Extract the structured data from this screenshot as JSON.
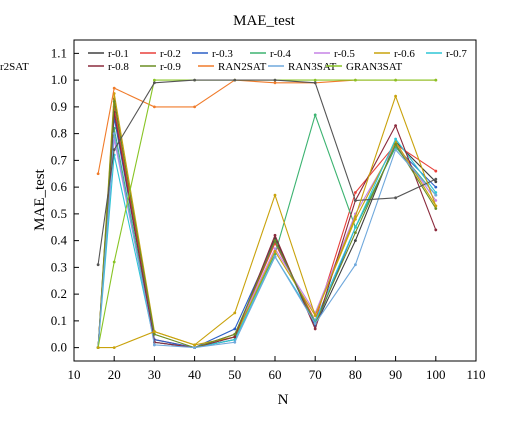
{
  "chart_data": {
    "type": "line",
    "title": "MAE_test",
    "xlabel": "N",
    "ylabel": "MAE_test",
    "xlim": [
      10,
      110
    ],
    "ylim": [
      -0.05,
      1.15
    ],
    "x_ticks": [
      "10",
      "20",
      "30",
      "40",
      "50",
      "60",
      "70",
      "80",
      "90",
      "100",
      "110"
    ],
    "y_ticks": [
      "0.0",
      "0.1",
      "0.2",
      "0.3",
      "0.4",
      "0.5",
      "0.6",
      "0.7",
      "0.8",
      "0.9",
      "1.0",
      "1.1"
    ],
    "grid": false,
    "legend_position": "top",
    "x": [
      16,
      20,
      30,
      40,
      50,
      60,
      70,
      80,
      90,
      100
    ],
    "series": [
      {
        "name": "r-0.1",
        "color": "#404040",
        "values": [
          0.0,
          0.93,
          0.02,
          0.0,
          0.03,
          0.41,
          0.08,
          0.4,
          0.77,
          0.62
        ]
      },
      {
        "name": "r-0.2",
        "color": "#e8403a",
        "values": [
          0.0,
          0.9,
          0.03,
          0.0,
          0.05,
          0.39,
          0.1,
          0.58,
          0.76,
          0.66
        ]
      },
      {
        "name": "r-0.3",
        "color": "#2b5fc6",
        "values": [
          0.0,
          0.86,
          0.03,
          0.0,
          0.07,
          0.4,
          0.08,
          0.45,
          0.75,
          0.6
        ]
      },
      {
        "name": "r-0.4",
        "color": "#3cb371",
        "values": [
          0.0,
          0.82,
          0.02,
          0.0,
          0.04,
          0.35,
          0.87,
          0.45,
          0.75,
          0.57
        ]
      },
      {
        "name": "r-0.5",
        "color": "#c583e6",
        "values": [
          0.0,
          0.78,
          0.02,
          0.0,
          0.05,
          0.37,
          0.13,
          0.5,
          0.76,
          0.55
        ]
      },
      {
        "name": "r-0.6",
        "color": "#c9a20c",
        "values": [
          0.0,
          0.95,
          0.06,
          0.01,
          0.04,
          0.36,
          0.12,
          0.48,
          0.77,
          0.53
        ]
      },
      {
        "name": "r-0.7",
        "color": "#2ec5d6",
        "values": [
          0.0,
          0.72,
          0.02,
          0.0,
          0.03,
          0.34,
          0.1,
          0.45,
          0.78,
          0.58
        ]
      },
      {
        "name": "r-0.8",
        "color": "#8b2a3c",
        "values": [
          0.0,
          0.88,
          0.02,
          0.0,
          0.04,
          0.42,
          0.07,
          0.55,
          0.83,
          0.44
        ]
      },
      {
        "name": "r-0.9",
        "color": "#6b8e23",
        "values": [
          0.0,
          0.92,
          0.05,
          0.0,
          0.05,
          0.4,
          0.09,
          0.43,
          0.76,
          0.52
        ]
      },
      {
        "name": "RAN2SAT",
        "color": "#f07b2a",
        "values": [
          0.65,
          0.97,
          0.9,
          0.9,
          1.0,
          0.99,
          0.99,
          1.0,
          1.0,
          1.0
        ]
      },
      {
        "name": "RAN3SAT",
        "color": "#6fa8dc",
        "values": [
          0.0,
          0.8,
          0.01,
          0.0,
          0.02,
          0.34,
          0.09,
          0.31,
          0.74,
          0.57
        ]
      },
      {
        "name": "GRAN3SAT",
        "color": "#88c425",
        "values": [
          0.0,
          0.32,
          1.0,
          1.0,
          1.0,
          1.0,
          1.0,
          1.0,
          1.0,
          1.0
        ]
      },
      {
        "name": "r2SAT",
        "color": "#555555",
        "values": [
          0.31,
          0.74,
          0.99,
          1.0,
          1.0,
          1.0,
          0.99,
          0.55,
          0.56,
          0.63
        ]
      },
      {
        "name": "",
        "color": "#c9a20c",
        "values": [
          0.0,
          0.0,
          0.06,
          0.01,
          0.13,
          0.57,
          0.12,
          0.49,
          0.94,
          0.53
        ]
      }
    ]
  }
}
